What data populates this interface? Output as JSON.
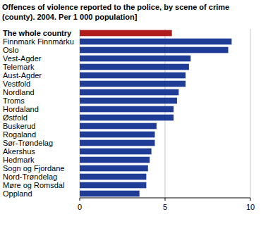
{
  "chart_data": {
    "type": "bar",
    "orientation": "horizontal",
    "title": "Offences of violence reported to the police, by scene of crime (county). 2004. Per 1 000 population]",
    "categories": [
      "The whole country",
      "Finnmark Finnmárku",
      "Oslo",
      "Vest-Agder",
      "Telemark",
      "Aust-Agder",
      "Vestfold",
      "Nordland",
      "Troms",
      "Hordaland",
      "Østfold",
      "Buskerud",
      "Rogaland",
      "Sør-Trøndelag",
      "Akershus",
      "Hedmark",
      "Sogn og Fjordane",
      "Nord-Trøndelag",
      "Møre og Romsdal",
      "Oppland"
    ],
    "values": [
      5.4,
      8.9,
      8.7,
      6.5,
      6.4,
      6.2,
      6.2,
      5.8,
      5.7,
      5.5,
      5.5,
      4.5,
      4.4,
      4.4,
      4.2,
      4.1,
      4.0,
      3.9,
      3.9,
      3.5
    ],
    "colors": [
      "#b01c1c",
      "#1f3c96",
      "#1f3c96",
      "#1f3c96",
      "#1f3c96",
      "#1f3c96",
      "#1f3c96",
      "#1f3c96",
      "#1f3c96",
      "#1f3c96",
      "#1f3c96",
      "#1f3c96",
      "#1f3c96",
      "#1f3c96",
      "#1f3c96",
      "#1f3c96",
      "#1f3c96",
      "#1f3c96",
      "#1f3c96",
      "#1f3c96"
    ],
    "xlim": [
      0,
      10
    ],
    "xticks": [
      0,
      5,
      10
    ],
    "grid": true
  }
}
